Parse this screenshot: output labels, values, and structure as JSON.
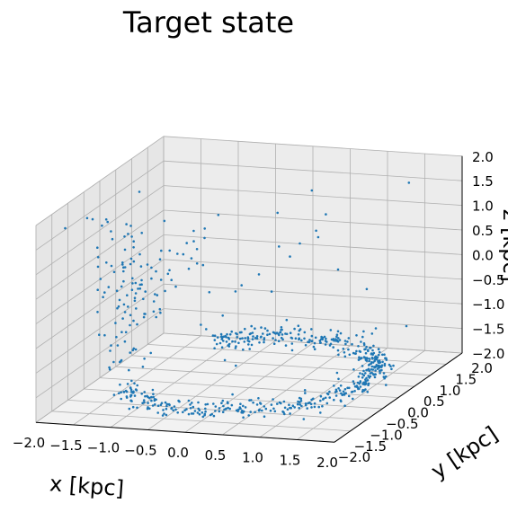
{
  "chart_data": {
    "type": "scatter",
    "title": "Target state",
    "xlabel": "x [kpc]",
    "ylabel": "y [kpc]",
    "zlabel": "z [kpc]",
    "xlim": [
      -2.0,
      2.0
    ],
    "ylim": [
      -2.0,
      2.0
    ],
    "zlim": [
      -2.0,
      2.0
    ],
    "grid": true,
    "x_ticks": [
      "−2.0",
      "−1.5",
      "−1.0",
      "−0.5",
      "0.0",
      "0.5",
      "1.0",
      "1.5",
      "2.0"
    ],
    "y_ticks": [
      "−2.0",
      "−1.5",
      "−1.0",
      "−0.5",
      "0.0",
      "0.5",
      "1.0",
      "1.5",
      "2.0"
    ],
    "z_ticks": [
      "−2.0",
      "−1.5",
      "−1.0",
      "−0.5",
      "0.0",
      "0.5",
      "1.0",
      "1.5",
      "2.0"
    ],
    "x_tick_values": [
      -2.0,
      -1.5,
      -1.0,
      -0.5,
      0.0,
      0.5,
      1.0,
      1.5,
      2.0
    ],
    "point_color": "#1f77b4",
    "series": [
      {
        "description": "points concentrated along a ring of radius ~1.6 kpc in the x-y plane near z = -1.7, open on one side, plus a loose upward tail and scattered outliers",
        "ring_radius": 1.6,
        "ring_z": -1.7,
        "n_points": 700
      }
    ]
  }
}
